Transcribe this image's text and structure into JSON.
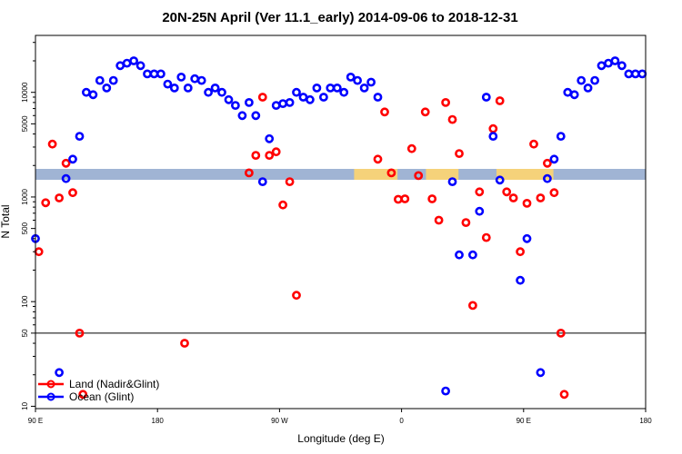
{
  "chart_data": {
    "type": "scatter",
    "title": "20N-25N April (Ver 11.1_early)   2014-09-06 to 2018-12-31",
    "xlabel": "Longitude (deg E)",
    "ylabel": "N Total",
    "x_scale": "linear",
    "y_scale": "log",
    "xlim": [
      90,
      540
    ],
    "ylim": [
      9.5,
      35000
    ],
    "x_ticks": [
      {
        "value": 90,
        "label": "90 E"
      },
      {
        "value": 180,
        "label": "180"
      },
      {
        "value": 270,
        "label": "90 W"
      },
      {
        "value": 360,
        "label": "0"
      },
      {
        "value": 450,
        "label": "90 E"
      },
      {
        "value": 540,
        "label": "180"
      }
    ],
    "y_ticks": [
      {
        "value": 10,
        "label": "10"
      },
      {
        "value": 50,
        "label": "50"
      },
      {
        "value": 100,
        "label": "100"
      },
      {
        "value": 500,
        "label": "500"
      },
      {
        "value": 1000,
        "label": "1000"
      },
      {
        "value": 5000,
        "label": "5000"
      },
      {
        "value": 10000,
        "label": "10000"
      }
    ],
    "reference_line": 50,
    "legend_position": "bottom-left",
    "colors": {
      "land": "#ff0000",
      "ocean": "#0000ff",
      "band": "#a0b4d4",
      "band_land": "#f5d27a"
    },
    "series": [
      {
        "name": "Land (Nadir&Glint)",
        "color": "#ff0000",
        "points": [
          [
            92.5,
            300
          ],
          [
            97.5,
            880
          ],
          [
            102.5,
            3200
          ],
          [
            107.5,
            980
          ],
          [
            112.5,
            2100
          ],
          [
            117.5,
            1100
          ],
          [
            122.5,
            50
          ],
          [
            125,
            13
          ],
          [
            200,
            40
          ],
          [
            247.5,
            1700
          ],
          [
            252.5,
            2500
          ],
          [
            257.5,
            9000
          ],
          [
            262.5,
            2500
          ],
          [
            267.5,
            2700
          ],
          [
            272.5,
            840
          ],
          [
            277.5,
            1400
          ],
          [
            282.5,
            115
          ],
          [
            342.5,
            2300
          ],
          [
            347.5,
            6500
          ],
          [
            352.5,
            1700
          ],
          [
            357.5,
            950
          ],
          [
            362.5,
            960
          ],
          [
            367.5,
            2900
          ],
          [
            372.5,
            1600
          ],
          [
            377.5,
            6500
          ],
          [
            382.5,
            960
          ],
          [
            387.5,
            600
          ],
          [
            392.5,
            8000
          ],
          [
            397.5,
            5500
          ],
          [
            402.5,
            2600
          ],
          [
            407.5,
            570
          ],
          [
            412.5,
            92
          ],
          [
            417.5,
            1120
          ],
          [
            422.5,
            410
          ],
          [
            427.5,
            4500
          ],
          [
            432.5,
            8300
          ],
          [
            437.5,
            1120
          ],
          [
            442.5,
            980
          ],
          [
            447.5,
            300
          ],
          [
            452.5,
            870
          ],
          [
            457.5,
            3200
          ],
          [
            462.5,
            980
          ],
          [
            467.5,
            2100
          ],
          [
            472.5,
            1100
          ],
          [
            477.5,
            50
          ],
          [
            480,
            13
          ]
        ]
      },
      {
        "name": "Ocean (Glint)",
        "color": "#0000ff",
        "points": [
          [
            90,
            400
          ],
          [
            107.5,
            21
          ],
          [
            112.5,
            1500
          ],
          [
            117.5,
            2300
          ],
          [
            122.5,
            3800
          ],
          [
            127.5,
            10000
          ],
          [
            132.5,
            9500
          ],
          [
            137.5,
            13000
          ],
          [
            142.5,
            11000
          ],
          [
            147.5,
            13000
          ],
          [
            152.5,
            18000
          ],
          [
            157.5,
            19000
          ],
          [
            162.5,
            20000
          ],
          [
            167.5,
            18000
          ],
          [
            172.5,
            15000
          ],
          [
            177.5,
            15000
          ],
          [
            182.5,
            15000
          ],
          [
            187.5,
            12000
          ],
          [
            192.5,
            11000
          ],
          [
            197.5,
            14000
          ],
          [
            202.5,
            11000
          ],
          [
            207.5,
            13500
          ],
          [
            212.5,
            13000
          ],
          [
            217.5,
            10000
          ],
          [
            222.5,
            11000
          ],
          [
            227.5,
            10000
          ],
          [
            232.5,
            8500
          ],
          [
            237.5,
            7500
          ],
          [
            242.5,
            6000
          ],
          [
            247.5,
            8000
          ],
          [
            252.5,
            6000
          ],
          [
            257.5,
            1400
          ],
          [
            262.5,
            3600
          ],
          [
            267.5,
            7500
          ],
          [
            272.5,
            7800
          ],
          [
            277.5,
            8000
          ],
          [
            282.5,
            10000
          ],
          [
            287.5,
            9000
          ],
          [
            292.5,
            8500
          ],
          [
            297.5,
            11000
          ],
          [
            302.5,
            9000
          ],
          [
            307.5,
            11000
          ],
          [
            312.5,
            11000
          ],
          [
            317.5,
            10000
          ],
          [
            322.5,
            14000
          ],
          [
            327.5,
            13000
          ],
          [
            332.5,
            11000
          ],
          [
            337.5,
            12500
          ],
          [
            342.5,
            9000
          ],
          [
            392.5,
            14
          ],
          [
            397.5,
            1400
          ],
          [
            402.5,
            280
          ],
          [
            412.5,
            280
          ],
          [
            417.5,
            730
          ],
          [
            422.5,
            9000
          ],
          [
            427.5,
            3800
          ],
          [
            432.5,
            1450
          ],
          [
            447.5,
            160
          ],
          [
            452.5,
            400
          ],
          [
            462.5,
            21
          ],
          [
            467.5,
            1500
          ],
          [
            472.5,
            2300
          ],
          [
            477.5,
            3800
          ],
          [
            482.5,
            10000
          ],
          [
            487.5,
            9500
          ],
          [
            492.5,
            13000
          ],
          [
            497.5,
            11000
          ],
          [
            502.5,
            13000
          ],
          [
            507.5,
            18000
          ],
          [
            512.5,
            19000
          ],
          [
            517.5,
            20000
          ],
          [
            522.5,
            18000
          ],
          [
            527.5,
            15000
          ],
          [
            532.5,
            15000
          ],
          [
            537.5,
            15000
          ]
        ]
      }
    ]
  }
}
